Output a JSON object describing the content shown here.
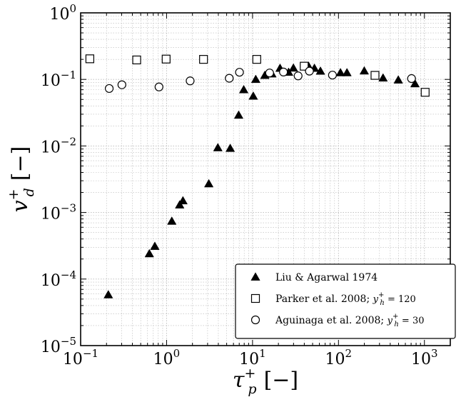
{
  "chart_data": {
    "type": "scatter",
    "x_scale": "log",
    "y_scale": "log",
    "xlim": [
      0.1,
      2000
    ],
    "ylim": [
      1e-05,
      1
    ],
    "grid": true,
    "legend_position": "bottom-right",
    "xlabel": {
      "symbol": "τ",
      "sub": "p",
      "sup": "+",
      "unit": "[−]"
    },
    "ylabel": {
      "symbol": "v",
      "sub": "d",
      "sup": "+",
      "unit": "[−]"
    },
    "x_ticks": [
      {
        "base": "10",
        "exp": "−1"
      },
      {
        "base": "10",
        "exp": "0"
      },
      {
        "base": "10",
        "exp": "1"
      },
      {
        "base": "10",
        "exp": "2"
      },
      {
        "base": "10",
        "exp": "3"
      }
    ],
    "y_ticks": [
      {
        "base": "10",
        "exp": "−5"
      },
      {
        "base": "10",
        "exp": "−4"
      },
      {
        "base": "10",
        "exp": "−3"
      },
      {
        "base": "10",
        "exp": "−2"
      },
      {
        "base": "10",
        "exp": "−1"
      },
      {
        "base": "10",
        "exp": "0"
      }
    ],
    "series": [
      {
        "name": "Liu & Agarwal 1974",
        "marker": "triangle",
        "color": "#000000",
        "x": [
          0.21,
          0.63,
          0.73,
          1.15,
          1.42,
          1.55,
          3.1,
          3.95,
          5.5,
          6.9,
          7.9,
          10.2,
          10.9,
          13.9,
          16.8,
          20.9,
          26.3,
          29.9,
          41.9,
          44.9,
          52.5,
          61.7,
          105.5,
          125.5,
          199.5,
          330.2,
          496.6,
          776.5
        ],
        "y": [
          5.8e-05,
          0.00024,
          0.00031,
          0.00074,
          0.0013,
          0.0015,
          0.0027,
          0.0094,
          0.0092,
          0.029,
          0.07,
          0.056,
          0.1,
          0.115,
          0.121,
          0.147,
          0.128,
          0.148,
          0.158,
          0.158,
          0.147,
          0.133,
          0.126,
          0.126,
          0.134,
          0.105,
          0.098,
          0.086
        ]
      },
      {
        "name": "Parker et al. 2008; ",
        "name_math": {
          "symbol": "y",
          "sub": "h",
          "sup": "+",
          "value": " = 120"
        },
        "marker": "square",
        "color": "#000000",
        "x": [
          0.128,
          0.449,
          0.988,
          2.69,
          11.2,
          39.9,
          266,
          1020
        ],
        "y": [
          0.204,
          0.196,
          0.202,
          0.2,
          0.2,
          0.158,
          0.115,
          0.064
        ]
      },
      {
        "name": "Aguinaga et al. 2008; ",
        "name_math": {
          "symbol": "y",
          "sub": "h",
          "sup": "+",
          "value": " = 30"
        },
        "marker": "circle",
        "color": "#000000",
        "x": [
          0.215,
          0.302,
          0.816,
          1.88,
          5.36,
          7.05,
          15.8,
          22.9,
          33.9,
          45.9,
          85.1,
          708
        ],
        "y": [
          0.073,
          0.083,
          0.077,
          0.095,
          0.104,
          0.128,
          0.125,
          0.129,
          0.113,
          0.133,
          0.116,
          0.103
        ]
      }
    ]
  }
}
